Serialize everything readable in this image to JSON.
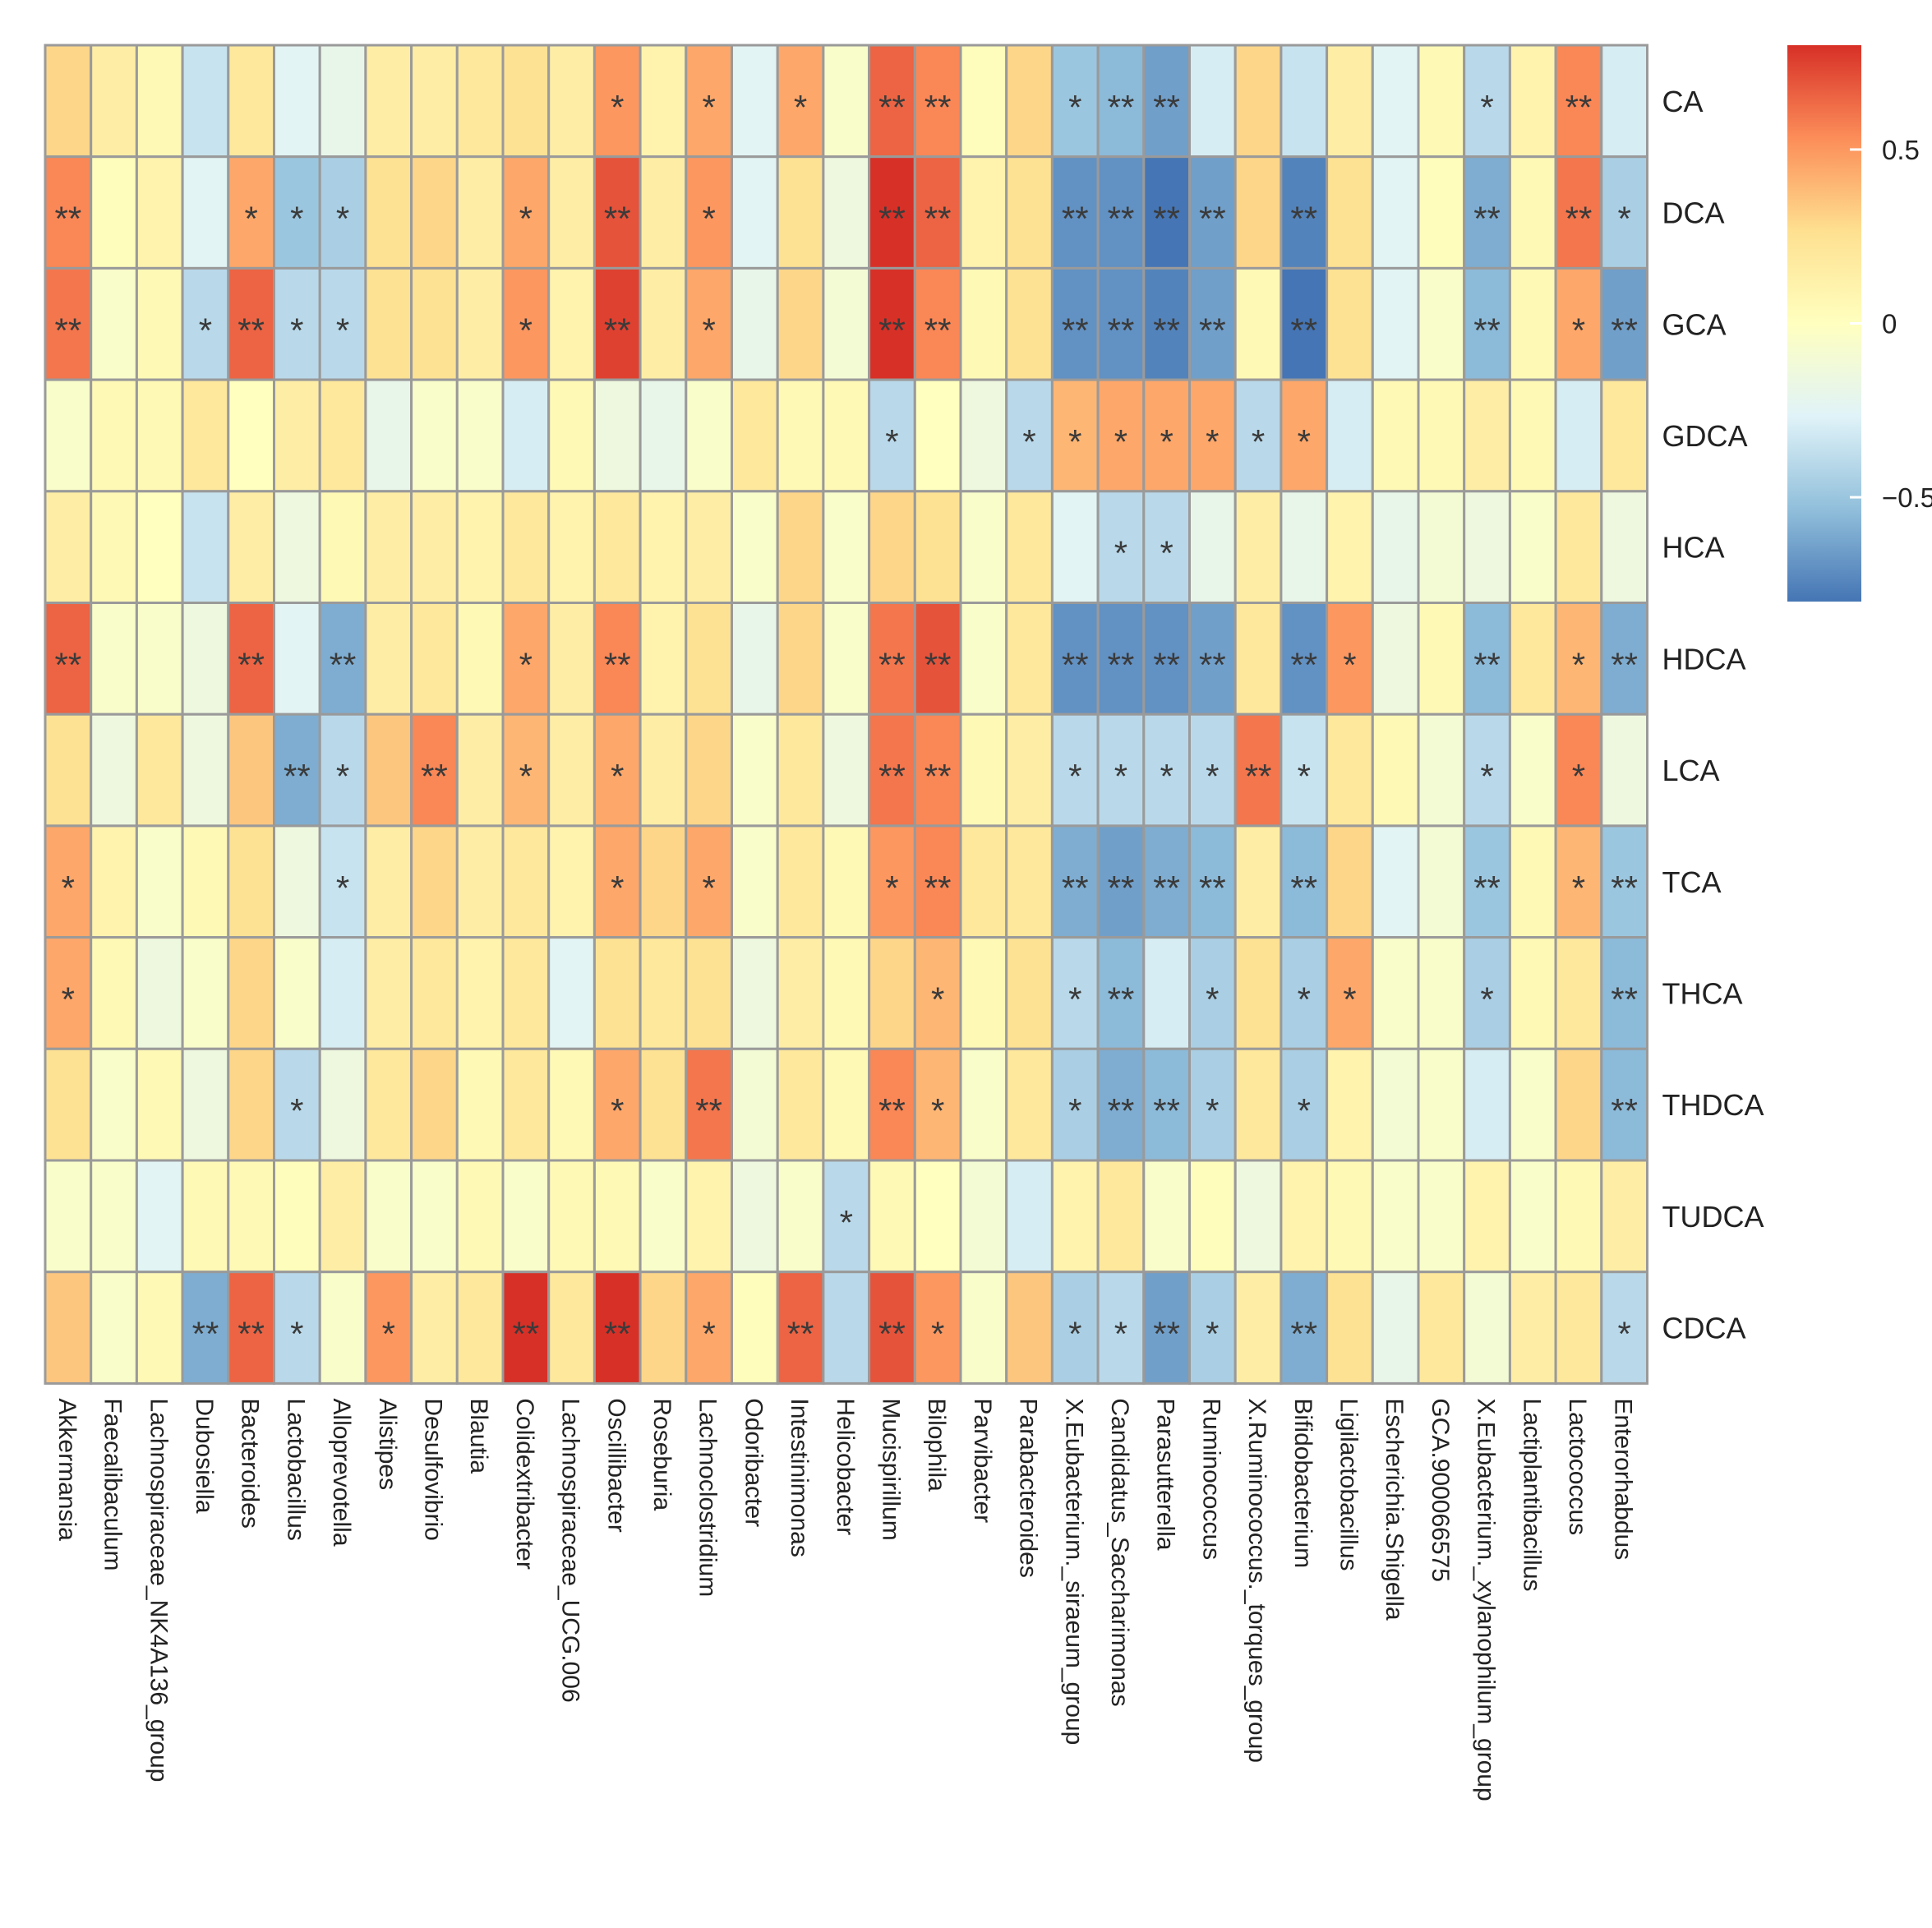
{
  "chart_data": {
    "type": "heatmap",
    "title": "",
    "rows": [
      "CA",
      "DCA",
      "GCA",
      "GDCA",
      "HCA",
      "HDCA",
      "LCA",
      "TCA",
      "THCA",
      "THDCA",
      "TUDCA",
      "CDCA"
    ],
    "columns": [
      "Akkermansia",
      "Faecalibaculum",
      "Lachnospiraceae_NK4A136_group",
      "Dubosiella",
      "Bacteroides",
      "Lactobacillus",
      "Alloprevotella",
      "Alistipes",
      "Desulfovibrio",
      "Blautia",
      "Colidextribacter",
      "Lachnospiraceae_UCG.006",
      "Oscillibacter",
      "Roseburia",
      "Lachnoclostridium",
      "Odoribacter",
      "Intestinimonas",
      "Helicobacter",
      "Mucispirillum",
      "Bilophila",
      "Parvibacter",
      "Parabacteroides",
      "X.Eubacterium._siraeum_group",
      "Candidatus_Saccharimonas",
      "Parasutterella",
      "Ruminococcus",
      "X.Ruminococcus._torques_group",
      "Bifidobacterium",
      "Ligilactobacillus",
      "Escherichia.Shigella",
      "GCA.900066575",
      "X.Eubacterium._xylanophilum_group",
      "Lactiplantibacillus",
      "Lactococcus",
      "Enterorhabdus"
    ],
    "values": [
      [
        0.3,
        0.15,
        0.05,
        -0.35,
        0.2,
        -0.25,
        -0.2,
        0.15,
        0.15,
        0.2,
        0.25,
        0.15,
        0.5,
        0.1,
        0.45,
        -0.25,
        0.45,
        -0.05,
        0.65,
        0.55,
        0.02,
        0.3,
        -0.5,
        -0.55,
        -0.65,
        -0.3,
        0.3,
        -0.35,
        0.15,
        -0.25,
        0.05,
        -0.4,
        0.1,
        0.55,
        -0.3
      ],
      [
        0.55,
        0.02,
        0.1,
        -0.25,
        0.45,
        -0.5,
        -0.45,
        0.25,
        0.3,
        0.15,
        0.45,
        0.15,
        0.7,
        0.15,
        0.5,
        -0.25,
        0.25,
        -0.15,
        0.85,
        0.65,
        0.1,
        0.25,
        -0.7,
        -0.7,
        -0.8,
        -0.65,
        0.3,
        -0.75,
        0.25,
        -0.25,
        0.02,
        -0.6,
        0.05,
        0.6,
        -0.45
      ],
      [
        0.6,
        -0.05,
        0.05,
        -0.4,
        0.65,
        -0.4,
        -0.4,
        0.25,
        0.25,
        0.15,
        0.5,
        0.1,
        0.75,
        0.15,
        0.45,
        -0.2,
        0.3,
        -0.1,
        0.8,
        0.55,
        0.05,
        0.25,
        -0.7,
        -0.7,
        -0.75,
        -0.65,
        0.05,
        -0.8,
        0.25,
        -0.25,
        -0.05,
        -0.55,
        0.05,
        0.45,
        -0.65
      ],
      [
        -0.05,
        0.05,
        0.05,
        0.2,
        0.0,
        0.15,
        0.2,
        -0.2,
        -0.05,
        -0.05,
        -0.3,
        0.05,
        -0.15,
        -0.2,
        -0.05,
        0.2,
        0.05,
        0.05,
        -0.4,
        0.0,
        -0.15,
        -0.4,
        0.4,
        0.45,
        0.45,
        0.45,
        -0.4,
        0.45,
        -0.3,
        0.05,
        0.05,
        0.15,
        0.05,
        -0.3,
        0.2
      ],
      [
        0.15,
        0.05,
        0.0,
        -0.35,
        0.15,
        -0.15,
        0.05,
        0.15,
        0.15,
        0.1,
        0.2,
        0.1,
        0.2,
        0.1,
        0.15,
        -0.05,
        0.3,
        -0.05,
        0.3,
        0.25,
        -0.05,
        0.2,
        -0.25,
        -0.4,
        -0.4,
        -0.2,
        0.15,
        -0.2,
        0.1,
        -0.2,
        -0.1,
        -0.15,
        -0.05,
        0.2,
        -0.15
      ],
      [
        0.65,
        -0.05,
        -0.05,
        -0.15,
        0.65,
        -0.25,
        -0.6,
        0.15,
        0.2,
        0.05,
        0.45,
        0.15,
        0.55,
        0.1,
        0.25,
        -0.2,
        0.3,
        -0.05,
        0.6,
        0.7,
        -0.05,
        0.2,
        -0.7,
        -0.7,
        -0.7,
        -0.65,
        0.2,
        -0.7,
        0.5,
        -0.15,
        0.05,
        -0.55,
        0.2,
        0.4,
        -0.6
      ],
      [
        0.25,
        -0.15,
        0.2,
        -0.15,
        0.35,
        -0.6,
        -0.4,
        0.35,
        0.55,
        0.15,
        0.4,
        0.15,
        0.45,
        0.15,
        0.3,
        -0.05,
        0.2,
        -0.15,
        0.6,
        0.55,
        0.05,
        0.15,
        -0.4,
        -0.4,
        -0.4,
        -0.4,
        0.6,
        -0.35,
        0.2,
        0.05,
        -0.1,
        -0.4,
        -0.05,
        0.55,
        -0.15
      ],
      [
        0.45,
        0.1,
        -0.05,
        0.05,
        0.25,
        -0.15,
        -0.35,
        0.15,
        0.3,
        0.15,
        0.2,
        0.1,
        0.45,
        0.3,
        0.45,
        -0.05,
        0.2,
        0.05,
        0.5,
        0.55,
        0.2,
        0.2,
        -0.6,
        -0.65,
        -0.6,
        -0.55,
        0.15,
        -0.55,
        0.3,
        -0.25,
        -0.1,
        -0.5,
        0.05,
        0.4,
        -0.5
      ],
      [
        0.45,
        0.05,
        -0.15,
        -0.05,
        0.3,
        -0.05,
        -0.3,
        0.15,
        0.2,
        0.1,
        0.2,
        -0.25,
        0.25,
        0.2,
        0.25,
        -0.15,
        0.15,
        0.05,
        0.3,
        0.4,
        0.05,
        0.25,
        -0.4,
        -0.55,
        -0.3,
        -0.45,
        0.25,
        -0.45,
        0.45,
        -0.05,
        -0.05,
        -0.45,
        0.05,
        0.2,
        -0.55
      ],
      [
        0.25,
        -0.05,
        0.05,
        -0.15,
        0.3,
        -0.4,
        -0.15,
        0.2,
        0.3,
        0.05,
        0.2,
        0.05,
        0.45,
        0.25,
        0.6,
        -0.1,
        0.2,
        0.05,
        0.55,
        0.4,
        -0.05,
        0.2,
        -0.45,
        -0.6,
        -0.55,
        -0.45,
        0.2,
        -0.45,
        0.1,
        -0.1,
        -0.05,
        -0.3,
        -0.05,
        0.3,
        -0.55
      ],
      [
        -0.05,
        -0.05,
        -0.25,
        0.05,
        0.05,
        0.02,
        0.15,
        -0.05,
        -0.05,
        0.05,
        -0.05,
        0.05,
        0.05,
        -0.05,
        0.1,
        -0.15,
        -0.05,
        -0.4,
        0.05,
        0.0,
        -0.1,
        -0.3,
        0.1,
        0.2,
        -0.05,
        0.02,
        -0.15,
        0.1,
        0.05,
        -0.05,
        -0.05,
        0.1,
        -0.05,
        0.05,
        0.15
      ],
      [
        0.35,
        -0.05,
        0.05,
        -0.6,
        0.65,
        -0.4,
        -0.05,
        0.5,
        0.15,
        0.2,
        0.8,
        0.2,
        0.8,
        0.3,
        0.45,
        0.02,
        0.65,
        -0.4,
        0.7,
        0.5,
        -0.05,
        0.35,
        -0.45,
        -0.4,
        -0.65,
        -0.45,
        0.15,
        -0.6,
        0.25,
        -0.2,
        0.2,
        -0.1,
        0.15,
        0.2,
        -0.4
      ]
    ],
    "significance": [
      [
        "",
        "",
        "",
        "",
        "",
        "",
        "",
        "",
        "",
        "",
        "",
        "",
        "*",
        "",
        "*",
        "",
        "*",
        "",
        "**",
        "**",
        "",
        "",
        "*",
        "**",
        "**",
        "",
        "",
        "",
        "",
        "",
        "",
        "*",
        "",
        "**",
        ""
      ],
      [
        "**",
        "",
        "",
        "",
        "*",
        "*",
        "*",
        "",
        "",
        "",
        "*",
        "",
        "**",
        "",
        "*",
        "",
        "",
        "",
        "**",
        "**",
        "",
        "",
        "**",
        "**",
        "**",
        "**",
        "",
        "**",
        "",
        "",
        "",
        "**",
        "",
        "**",
        "*"
      ],
      [
        "**",
        "",
        "",
        "*",
        "**",
        "*",
        "*",
        "",
        "",
        "",
        "*",
        "",
        "**",
        "",
        "*",
        "",
        "",
        "",
        "**",
        "**",
        "",
        "",
        "**",
        "**",
        "**",
        "**",
        "",
        "**",
        "",
        "",
        "",
        "**",
        "",
        "*",
        "**"
      ],
      [
        "",
        "",
        "",
        "",
        "",
        "",
        "",
        "",
        "",
        "",
        "",
        "",
        "",
        "",
        "",
        "",
        "",
        "",
        "*",
        "",
        "",
        "*",
        "*",
        "*",
        "*",
        "*",
        "*",
        "*",
        "",
        "",
        "",
        "",
        "",
        "",
        ""
      ],
      [
        "",
        "",
        "",
        "",
        "",
        "",
        "",
        "",
        "",
        "",
        "",
        "",
        "",
        "",
        "",
        "",
        "",
        "",
        "",
        "",
        "",
        "",
        "",
        "*",
        "*",
        "",
        "",
        "",
        "",
        "",
        "",
        "",
        "",
        "",
        ""
      ],
      [
        "**",
        "",
        "",
        "",
        "**",
        "",
        "**",
        "",
        "",
        "",
        "*",
        "",
        "**",
        "",
        "",
        "",
        "",
        "",
        "**",
        "**",
        "",
        "",
        "**",
        "**",
        "**",
        "**",
        "",
        "**",
        "*",
        "",
        "",
        "**",
        "",
        "*",
        "**"
      ],
      [
        "",
        "",
        "",
        "",
        "",
        "**",
        "*",
        "",
        "**",
        "",
        "*",
        "",
        "*",
        "",
        "",
        "",
        "",
        "",
        "**",
        "**",
        "",
        "",
        "*",
        "*",
        "*",
        "*",
        "**",
        "*",
        "",
        "",
        "",
        "*",
        "",
        "*",
        ""
      ],
      [
        "*",
        "",
        "",
        "",
        "",
        "",
        "*",
        "",
        "",
        "",
        "",
        "",
        "*",
        "",
        "*",
        "",
        "",
        "",
        "*",
        "**",
        "",
        "",
        "**",
        "**",
        "**",
        "**",
        "",
        "**",
        "",
        "",
        "",
        "**",
        "",
        "*",
        "**"
      ],
      [
        "*",
        "",
        "",
        "",
        "",
        "",
        "",
        "",
        "",
        "",
        "",
        "",
        "",
        "",
        "",
        "",
        "",
        "",
        "",
        "*",
        "",
        "",
        "*",
        "**",
        "",
        "*",
        "",
        "*",
        "*",
        "",
        "",
        "*",
        "",
        "",
        "**"
      ],
      [
        "",
        "",
        "",
        "",
        "",
        "*",
        "",
        "",
        "",
        "",
        "",
        "",
        "*",
        "",
        "**",
        "",
        "",
        "",
        "**",
        "*",
        "",
        "",
        "*",
        "**",
        "**",
        "*",
        "",
        "*",
        "",
        "",
        "",
        "",
        "",
        "",
        "**"
      ],
      [
        "",
        "",
        "",
        "",
        "",
        "",
        "",
        "",
        "",
        "",
        "",
        "",
        "",
        "",
        "",
        "",
        "",
        "*",
        "",
        "",
        "",
        "",
        "",
        "",
        "",
        "",
        "",
        "",
        "",
        "",
        "",
        "",
        "",
        "",
        ""
      ],
      [
        "",
        "",
        "",
        "**",
        "**",
        "*",
        "",
        "*",
        "",
        "",
        "**",
        "",
        "**",
        "",
        "*",
        "",
        "**",
        "",
        "**",
        "*",
        "",
        "",
        "*",
        "*",
        "**",
        "*",
        "",
        "**",
        "",
        "",
        "",
        "",
        "",
        "",
        "*"
      ]
    ],
    "legend": {
      "range": [
        -0.8,
        0.8
      ],
      "ticks": [
        0.5,
        0,
        -0.5
      ],
      "tick_labels": [
        "0.5",
        "0",
        "−0.5"
      ],
      "palette": [
        "#4575B4",
        "#91BFDB",
        "#E0F3F8",
        "#FFFFBF",
        "#FEE090",
        "#FC8D59",
        "#D73027"
      ],
      "placement": "right"
    }
  }
}
